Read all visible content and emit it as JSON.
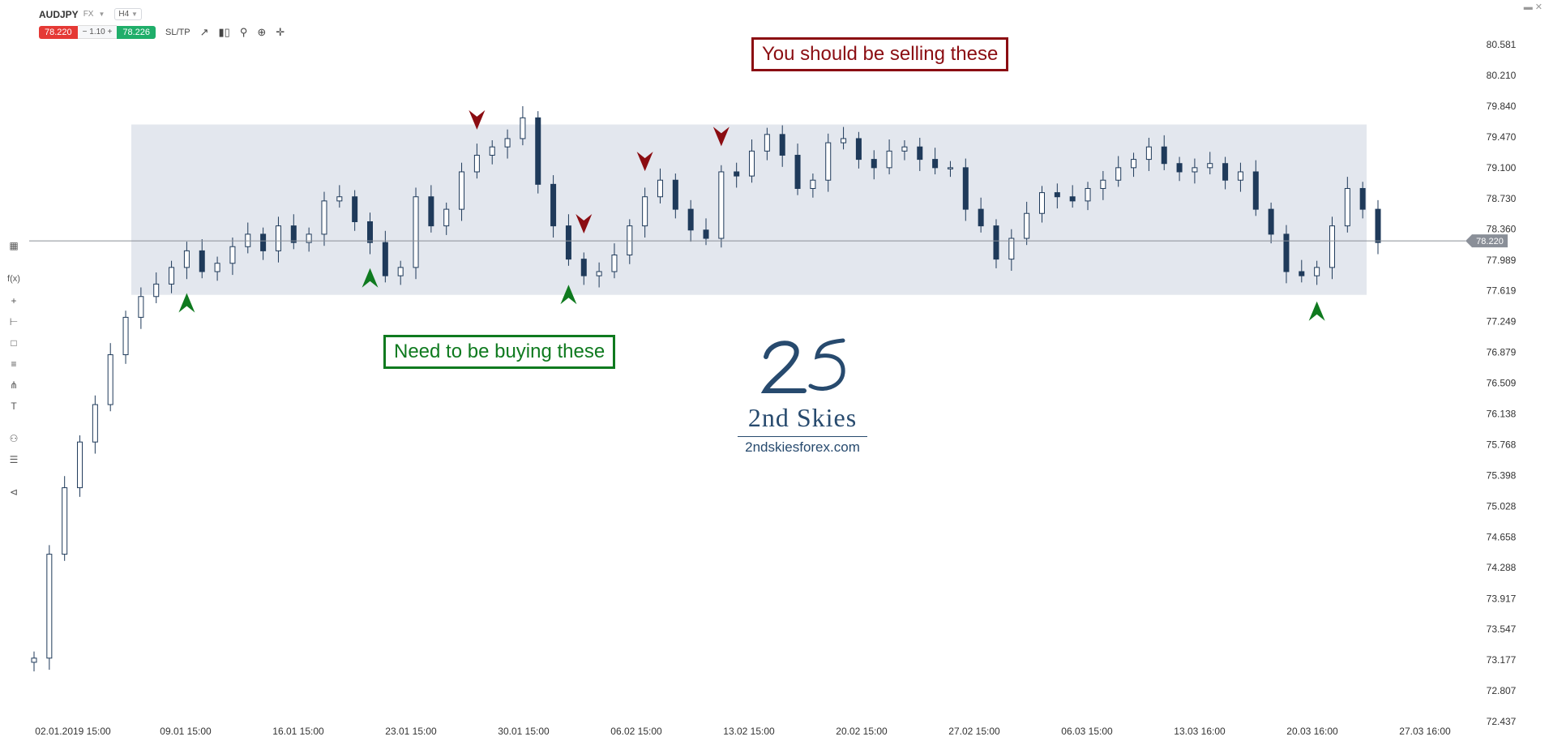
{
  "header": {
    "symbol": "AUDJPY",
    "exchange": "FX",
    "timeframe": "H4",
    "sell_price": "78.220",
    "quantity": "1.10",
    "buy_price": "78.226",
    "sltp_label": "SL/TP",
    "icons": [
      "line-chart-icon",
      "candles-icon",
      "zoom-out-icon",
      "zoom-in-icon",
      "crosshair-icon"
    ]
  },
  "left_toolbar": {
    "icons": [
      "panel-icon",
      "indicators-icon",
      "crosshair-tool-icon",
      "line-tool-icon",
      "rectangle-tool-icon",
      "fibonacci-tool-icon",
      "pitchfork-tool-icon",
      "text-tool-icon",
      "chart-settings-icon",
      "layers-icon",
      "share-icon"
    ],
    "labels": {
      "indicators": "f(x)",
      "text": "T"
    }
  },
  "annotations": {
    "sell_text": "You should be selling these",
    "buy_text": "Need to be buying these",
    "sell_color": "#8b0d12",
    "buy_color": "#0f7a1f"
  },
  "logo": {
    "brand": "2nd Skies",
    "url": "2ndskiesforex.com",
    "color": "#274a6e"
  },
  "chart_data": {
    "type": "candlestick",
    "symbol": "AUDJPY",
    "timeframe": "H4",
    "current_price": "78.220",
    "ylim": [
      72.427,
      80.7
    ],
    "y_ticks": [
      "80.581",
      "80.210",
      "79.840",
      "79.470",
      "79.100",
      "78.730",
      "78.360",
      "77.989",
      "77.619",
      "77.249",
      "76.879",
      "76.509",
      "76.138",
      "75.768",
      "75.398",
      "75.028",
      "74.658",
      "74.288",
      "73.917",
      "73.547",
      "73.177",
      "72.807",
      "72.437"
    ],
    "x_ticks": [
      "02.01.2019 15:00",
      "09.01 15:00",
      "16.01 15:00",
      "23.01 15:00",
      "30.01 15:00",
      "06.02 15:00",
      "13.02 15:00",
      "20.02 15:00",
      "27.02 15:00",
      "06.03 15:00",
      "13.03 16:00",
      "20.03 16:00",
      "27.03 16:00"
    ],
    "range_zone": {
      "high": 79.62,
      "low": 77.57,
      "color": "#e3e7ee"
    },
    "sell_marks": [
      29,
      36,
      40,
      45
    ],
    "buy_marks": [
      10,
      22,
      35,
      84
    ],
    "closes": [
      73.2,
      74.45,
      75.25,
      75.8,
      76.25,
      76.85,
      77.3,
      77.55,
      77.7,
      77.9,
      78.1,
      77.85,
      77.95,
      78.15,
      78.3,
      78.1,
      78.4,
      78.2,
      78.3,
      78.7,
      78.75,
      78.45,
      78.2,
      77.8,
      77.9,
      78.75,
      78.4,
      78.6,
      79.05,
      79.25,
      79.35,
      79.45,
      79.7,
      78.9,
      78.4,
      78.0,
      77.8,
      77.85,
      78.05,
      78.4,
      78.75,
      78.95,
      78.6,
      78.35,
      78.25,
      79.05,
      79.0,
      79.3,
      79.5,
      79.25,
      78.85,
      78.95,
      79.4,
      79.45,
      79.2,
      79.1,
      79.3,
      79.35,
      79.2,
      79.1,
      79.1,
      78.6,
      78.4,
      78.0,
      78.25,
      78.55,
      78.8,
      78.75,
      78.7,
      78.85,
      78.95,
      79.1,
      79.2,
      79.35,
      79.15,
      79.05,
      79.1,
      79.15,
      78.95,
      79.05,
      78.6,
      78.3,
      77.85,
      77.8,
      77.9,
      78.4,
      78.85,
      78.6,
      78.2
    ]
  }
}
